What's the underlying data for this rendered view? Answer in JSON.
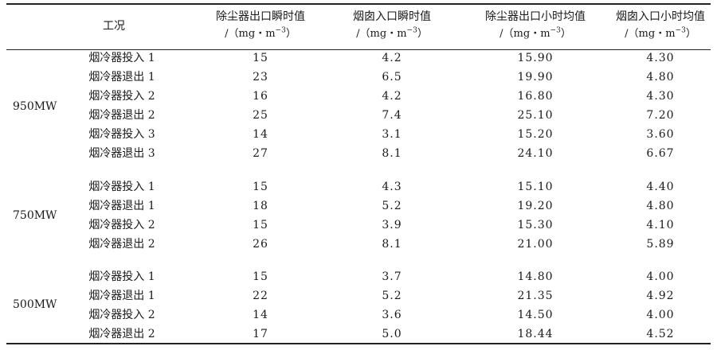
{
  "table": {
    "header": {
      "condition": "工况",
      "columns": [
        {
          "title": "除尘器出口瞬时值",
          "unit_prefix": "/（mg・m",
          "unit_exp": "−3",
          "unit_suffix": "）"
        },
        {
          "title": "烟囱入口瞬时值",
          "unit_prefix": "/（mg・m",
          "unit_exp": "−3",
          "unit_suffix": "）"
        },
        {
          "title": "除尘器出口小时均值",
          "unit_prefix": "/（mg・m",
          "unit_exp": "−3",
          "unit_suffix": "）"
        },
        {
          "title": "烟囱入口小时均值",
          "unit_prefix": "/（mg・m",
          "unit_exp": "−3",
          "unit_suffix": "）"
        }
      ]
    },
    "groups": [
      {
        "label": "950MW",
        "rows": [
          {
            "condition": "烟冷器投入 1",
            "v1": "15",
            "v2": "4.2",
            "v3": "15.90",
            "v4": "4.30"
          },
          {
            "condition": "烟冷器退出 1",
            "v1": "23",
            "v2": "6.5",
            "v3": "19.90",
            "v4": "4.80"
          },
          {
            "condition": "烟冷器投入 2",
            "v1": "16",
            "v2": "4.2",
            "v3": "16.80",
            "v4": "4.30"
          },
          {
            "condition": "烟冷器退出 2",
            "v1": "25",
            "v2": "7.4",
            "v3": "25.10",
            "v4": "7.20"
          },
          {
            "condition": "烟冷器投入 3",
            "v1": "14",
            "v2": "3.1",
            "v3": "15.20",
            "v4": "3.60"
          },
          {
            "condition": "烟冷器退出 3",
            "v1": "27",
            "v2": "8.1",
            "v3": "24.10",
            "v4": "6.67"
          }
        ]
      },
      {
        "label": "750MW",
        "rows": [
          {
            "condition": "烟冷器投入 1",
            "v1": "15",
            "v2": "4.3",
            "v3": "15.10",
            "v4": "4.40"
          },
          {
            "condition": "烟冷器退出 1",
            "v1": "18",
            "v2": "5.2",
            "v3": "19.20",
            "v4": "4.80"
          },
          {
            "condition": "烟冷器投入 2",
            "v1": "15",
            "v2": "3.9",
            "v3": "15.30",
            "v4": "4.10"
          },
          {
            "condition": "烟冷器退出 2",
            "v1": "26",
            "v2": "8.1",
            "v3": "21.00",
            "v4": "5.89"
          }
        ]
      },
      {
        "label": "500MW",
        "rows": [
          {
            "condition": "烟冷器投入 1",
            "v1": "15",
            "v2": "3.7",
            "v3": "14.80",
            "v4": "4.00"
          },
          {
            "condition": "烟冷器退出 1",
            "v1": "22",
            "v2": "5.2",
            "v3": "21.35",
            "v4": "4.92"
          },
          {
            "condition": "烟冷器投入 2",
            "v1": "14",
            "v2": "3.6",
            "v3": "14.50",
            "v4": "4.00"
          },
          {
            "condition": "烟冷器退出 2",
            "v1": "17",
            "v2": "5.0",
            "v3": "18.44",
            "v4": "4.52"
          }
        ]
      }
    ]
  }
}
